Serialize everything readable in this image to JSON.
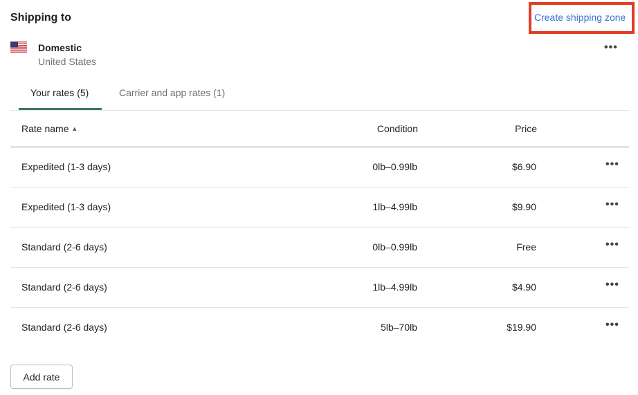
{
  "header": {
    "title": "Shipping to",
    "create_zone_label": "Create shipping zone"
  },
  "zone": {
    "name": "Domestic",
    "country": "United States",
    "flag_icon": "us-flag-icon",
    "more_label": "•••"
  },
  "tabs": [
    {
      "label": "Your rates (5)",
      "active": true
    },
    {
      "label": "Carrier and app rates (1)",
      "active": false
    }
  ],
  "table": {
    "headers": {
      "name": "Rate name",
      "condition": "Condition",
      "price": "Price"
    },
    "sort_indicator": "▲",
    "rows": [
      {
        "name": "Expedited (1-3 days)",
        "condition": "0lb–0.99lb",
        "price": "$6.90",
        "more": "•••"
      },
      {
        "name": "Expedited (1-3 days)",
        "condition": "1lb–4.99lb",
        "price": "$9.90",
        "more": "•••"
      },
      {
        "name": "Standard (2-6 days)",
        "condition": "0lb–0.99lb",
        "price": "Free",
        "more": "•••"
      },
      {
        "name": "Standard (2-6 days)",
        "condition": "1lb–4.99lb",
        "price": "$4.90",
        "more": "•••"
      },
      {
        "name": "Standard (2-6 days)",
        "condition": "5lb–70lb",
        "price": "$19.90",
        "more": "•••"
      }
    ]
  },
  "add_rate_label": "Add rate",
  "colors": {
    "link": "#3a72d0",
    "highlight": "#e03e24",
    "tab_indicator": "#3c7a5a"
  }
}
